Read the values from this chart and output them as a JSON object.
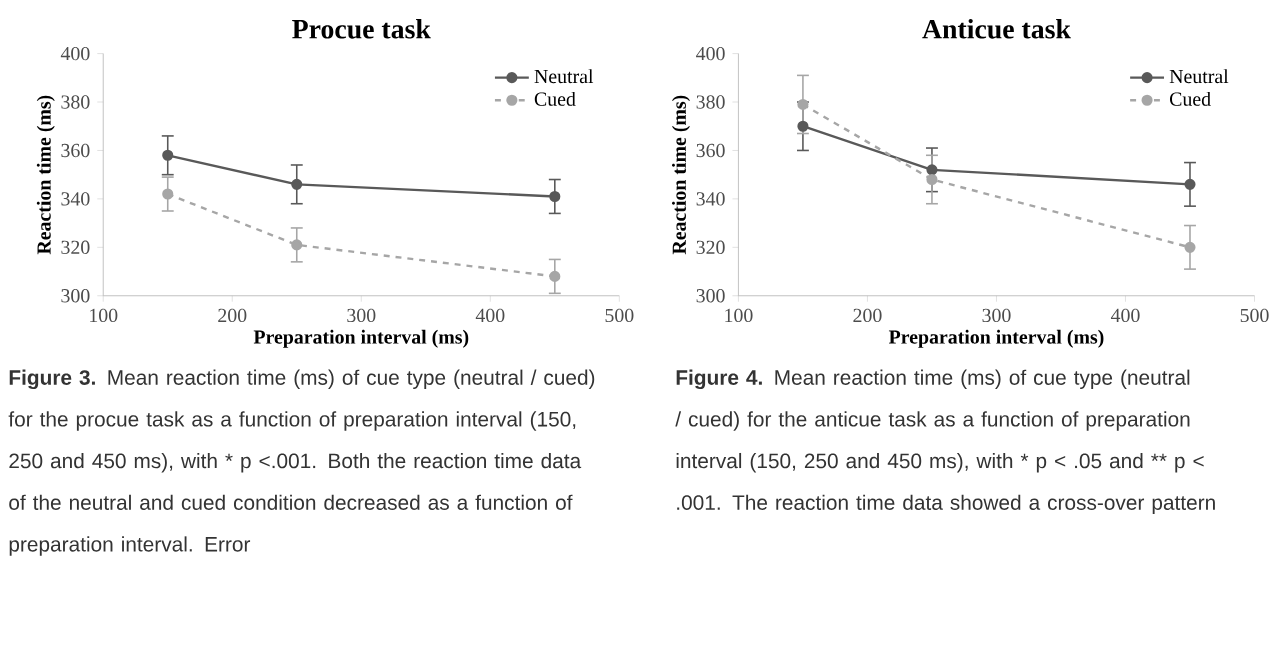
{
  "chart_data": [
    {
      "type": "line",
      "title": "Procue task",
      "xlabel": "Preparation interval (ms)",
      "ylabel": "Reaction time (ms)",
      "xlim": [
        100,
        500
      ],
      "ylim": [
        300,
        400
      ],
      "xticks": [
        100,
        200,
        300,
        400,
        500
      ],
      "yticks": [
        300,
        320,
        340,
        360,
        380,
        400
      ],
      "legend": "top right",
      "marker": "circle",
      "grid": false,
      "x": [
        150,
        250,
        450
      ],
      "series": [
        {
          "name": "Neutral",
          "color": "#595959",
          "line_style": "solid",
          "values": [
            358,
            346,
            341
          ],
          "errors": [
            8,
            8,
            7
          ]
        },
        {
          "name": "Cued",
          "color": "#a6a6a6",
          "line_style": "dashed",
          "values": [
            342,
            321,
            308
          ],
          "errors": [
            7,
            7,
            7
          ]
        }
      ],
      "annotations": [
        "**Figure 3.** Mean reaction time (ms) of cue type (neutral / cued) for the procue task as a function of preparation interval (150, 250 and 450 ms), with * p <.001. Both the reaction time data of the neutral and cued condition decreased as a function of preparation interval. Error"
      ]
    },
    {
      "type": "line",
      "title": "Anticue task",
      "xlabel": "Preparation interval (ms)",
      "ylabel": "Reaction time (ms)",
      "xlim": [
        100,
        500
      ],
      "ylim": [
        300,
        400
      ],
      "xticks": [
        100,
        200,
        300,
        400,
        500
      ],
      "yticks": [
        300,
        320,
        340,
        360,
        380,
        400
      ],
      "legend": "top right",
      "marker": "circle",
      "grid": false,
      "x": [
        150,
        250,
        450
      ],
      "series": [
        {
          "name": "Neutral",
          "color": "#595959",
          "line_style": "solid",
          "values": [
            370,
            352,
            346
          ],
          "errors": [
            10,
            9,
            9
          ]
        },
        {
          "name": "Cued",
          "color": "#a6a6a6",
          "line_style": "dashed",
          "values": [
            379,
            348,
            320
          ],
          "errors": [
            12,
            10,
            9
          ]
        }
      ],
      "annotations": [
        "**Figure 4.** Mean reaction time (ms) of cue type (neutral / cued) for the anticue task as a function of preparation interval (150, 250 and 450 ms), with * p < .05 and ** p < .001. The reaction time data showed a cross-over pattern"
      ]
    }
  ]
}
